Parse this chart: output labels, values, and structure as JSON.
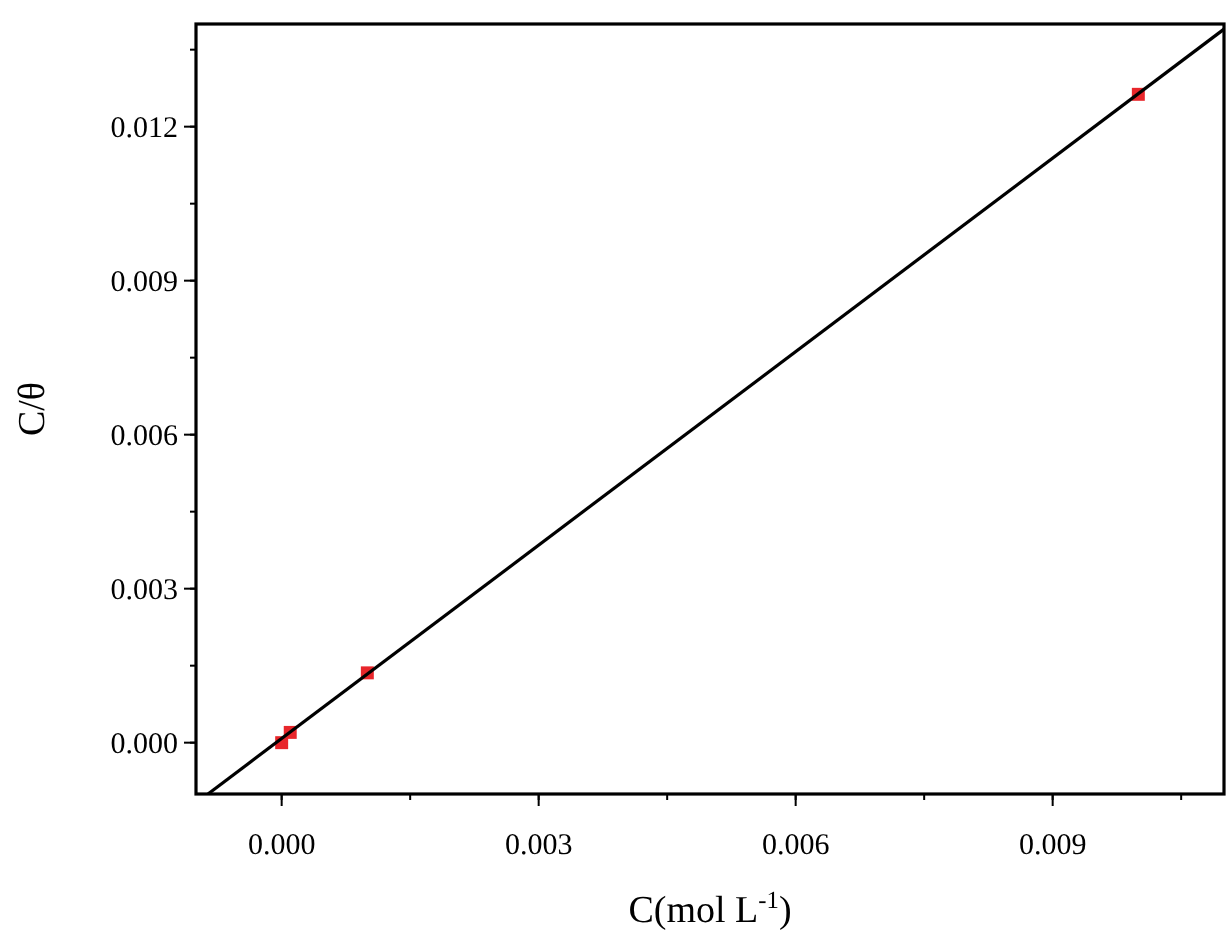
{
  "chart_data": {
    "type": "scatter",
    "xlabel": "C(mol L$^{-1}$)",
    "ylabel": "C/θ",
    "x": [
      0,
      0.0001,
      0.001,
      0.01
    ],
    "series": [
      {
        "color": "#e8262b",
        "values": [
          0,
          0.0002,
          0.00136,
          0.01263
        ],
        "marker": "square"
      },
      {
        "type": "line",
        "color": "#000000",
        "x": [
          -0.00086,
          0.011
        ],
        "values": [
          -0.001,
          0.0139
        ],
        "line_style": "solid",
        "marker": "none"
      }
    ],
    "xlim": [
      -0.001,
      0.011
    ],
    "xticks": [
      {
        "value": 0,
        "label": "0.000"
      },
      {
        "value": 0.003,
        "label": "0.003"
      },
      {
        "value": 0.006,
        "label": "0.006"
      },
      {
        "value": 0.009,
        "label": "0.009"
      }
    ],
    "ylim": [
      -0.001,
      0.014
    ],
    "yticks": [
      {
        "value": 0,
        "label": "0.000"
      },
      {
        "value": 0.003,
        "label": "0.003"
      },
      {
        "value": 0.006,
        "label": "0.006"
      },
      {
        "value": 0.009,
        "label": "0.009"
      },
      {
        "value": 0.012,
        "label": "0.012"
      }
    ]
  }
}
